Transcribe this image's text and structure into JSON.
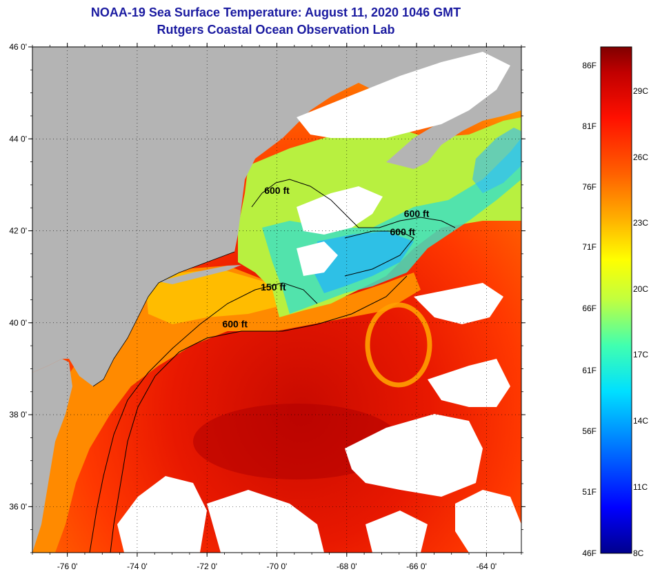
{
  "title": "NOAA-19 Sea Surface Temperature:  August 11, 2020 1046 GMT",
  "subtitle": "Rutgers Coastal Ocean Observation Lab",
  "map": {
    "lon_range": [
      -77,
      -63
    ],
    "lat_range": [
      35,
      46
    ],
    "lat_labels": [
      "46 0'",
      "44 0'",
      "42 0'",
      "40 0'",
      "38 0'",
      "36 0'"
    ],
    "lat_values": [
      46,
      44,
      42,
      40,
      38,
      36
    ],
    "lon_labels": [
      "-76 0'",
      "-74 0'",
      "-72 0'",
      "-70 0'",
      "-68 0'",
      "-66 0'",
      "-64 0'"
    ],
    "lon_values": [
      -76,
      -74,
      -72,
      -70,
      -68,
      -66,
      -64
    ],
    "contour_labels": [
      {
        "text": "600 ft",
        "lon": -70.0,
        "lat": 42.8
      },
      {
        "text": "600 ft",
        "lon": -66.0,
        "lat": 42.3
      },
      {
        "text": "600 ft",
        "lon": -66.4,
        "lat": 41.9
      },
      {
        "text": "150 ft",
        "lon": -70.1,
        "lat": 40.7
      },
      {
        "text": "600 ft",
        "lon": -71.2,
        "lat": 39.9
      }
    ],
    "colors": {
      "land": "#b4b4b4",
      "cloud": "#ffffff",
      "contour": "#000000"
    }
  },
  "colorbar": {
    "fahrenheit_labels": [
      "86F",
      "81F",
      "76F",
      "71F",
      "66F",
      "61F",
      "56F",
      "51F",
      "46F"
    ],
    "celsius_labels": [
      "29C",
      "26C",
      "23C",
      "20C",
      "17C",
      "14C",
      "11C",
      "8C"
    ],
    "stops": [
      "#00008c",
      "#0000ff",
      "#0080ff",
      "#00e0ff",
      "#40ffb0",
      "#c0ff40",
      "#ffff00",
      "#ffb000",
      "#ff6000",
      "#ff1000",
      "#c00000",
      "#800000"
    ]
  }
}
